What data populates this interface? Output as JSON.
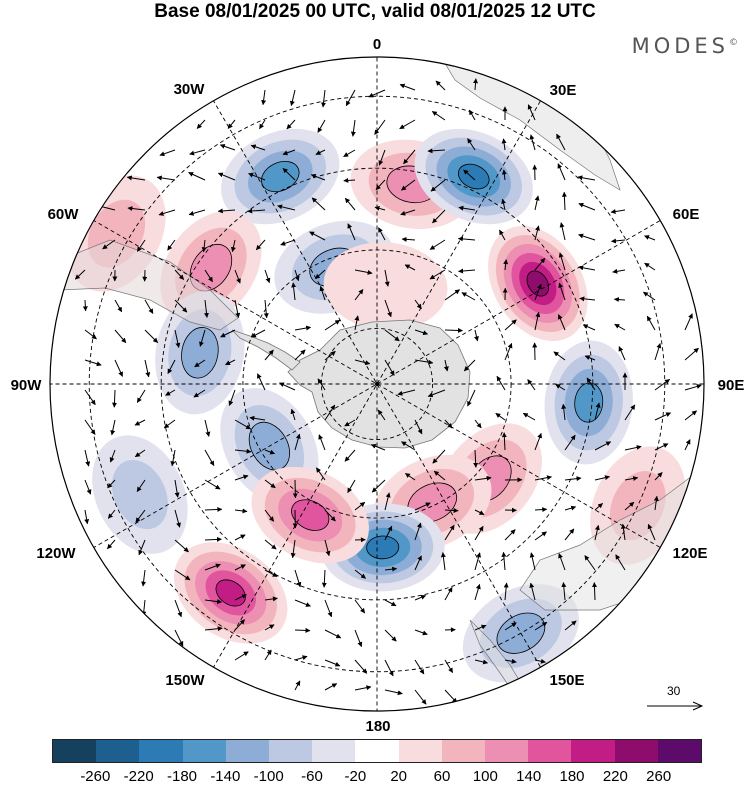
{
  "header": {
    "title": "Base 08/01/2025 00 UTC, valid 08/01/2025 12 UTC",
    "brand": "MODES",
    "brand_mark": "©"
  },
  "map": {
    "projection": "south-polar-stereographic",
    "longitude_labels": [
      "0",
      "30E",
      "60E",
      "90E",
      "120E",
      "150E",
      "180",
      "150W",
      "120W",
      "90W",
      "60W",
      "30W"
    ],
    "reference_vector_label": "30",
    "colors": {
      "land": "#e2e2e2",
      "coast": "#777777",
      "grid": "#000000"
    },
    "anomalies": [
      {
        "lon": 10,
        "r": 0.62,
        "value": 110
      },
      {
        "lon": -25,
        "r": 0.7,
        "value": -140
      },
      {
        "lon": 25,
        "r": 0.7,
        "value": -200
      },
      {
        "lon": 58,
        "r": 0.58,
        "value": 240
      },
      {
        "lon": -60,
        "r": 0.92,
        "value": 90
      },
      {
        "lon": -55,
        "r": 0.62,
        "value": 110
      },
      {
        "lon": -20,
        "r": 0.38,
        "value": -100
      },
      {
        "lon": 5,
        "r": 0.3,
        "value": 40
      },
      {
        "lon": -80,
        "r": 0.55,
        "value": -110
      },
      {
        "lon": -120,
        "r": 0.38,
        "value": -110
      },
      {
        "lon": 95,
        "r": 0.65,
        "value": -160
      },
      {
        "lon": 130,
        "r": 0.45,
        "value": 120
      },
      {
        "lon": 155,
        "r": 0.4,
        "value": 110
      },
      {
        "lon": 178,
        "r": 0.5,
        "value": -200
      },
      {
        "lon": -153,
        "r": 0.45,
        "value": 170
      },
      {
        "lon": -145,
        "r": 0.78,
        "value": 180
      },
      {
        "lon": 115,
        "r": 0.88,
        "value": 80
      },
      {
        "lon": 150,
        "r": 0.88,
        "value": -100
      },
      {
        "lon": -115,
        "r": 0.8,
        "value": -60
      }
    ]
  },
  "colorbar": {
    "labels": [
      "-260",
      "-220",
      "-180",
      "-140",
      "-100",
      "-60",
      "-20",
      "20",
      "60",
      "100",
      "140",
      "180",
      "220",
      "260"
    ],
    "colors": [
      "#16415e",
      "#1d5f8e",
      "#2d7bb5",
      "#5197c7",
      "#8eadd6",
      "#bdc8e2",
      "#e1e2ee",
      "#ffffff",
      "#f9dcdd",
      "#f3b5bd",
      "#ec8fb2",
      "#e1559e",
      "#c21c85",
      "#8d0c6c",
      "#5c0b6b"
    ]
  }
}
